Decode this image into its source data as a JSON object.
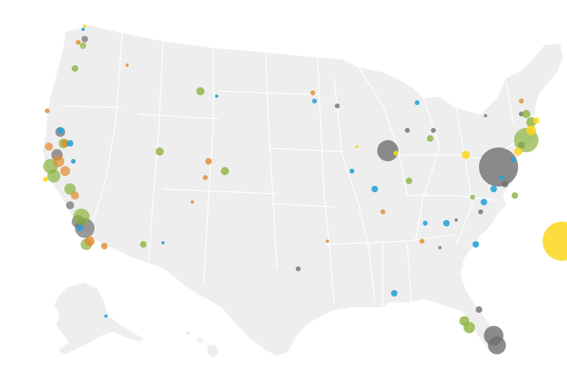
{
  "map": {
    "region": "United States",
    "colors": {
      "land": "#eeeeee",
      "state_border": "#ffffff",
      "gray": "#6f6f6f",
      "green": "#8ab43c",
      "orange": "#e08a28",
      "blue": "#2aa3d8",
      "yellow": "#fbd71e"
    },
    "bubble_groups": [
      {
        "color": "gray",
        "count": 22
      },
      {
        "color": "green",
        "count": 21
      },
      {
        "color": "orange",
        "count": 18
      },
      {
        "color": "blue",
        "count": 20
      },
      {
        "color": "yellow",
        "count": 9
      }
    ]
  }
}
